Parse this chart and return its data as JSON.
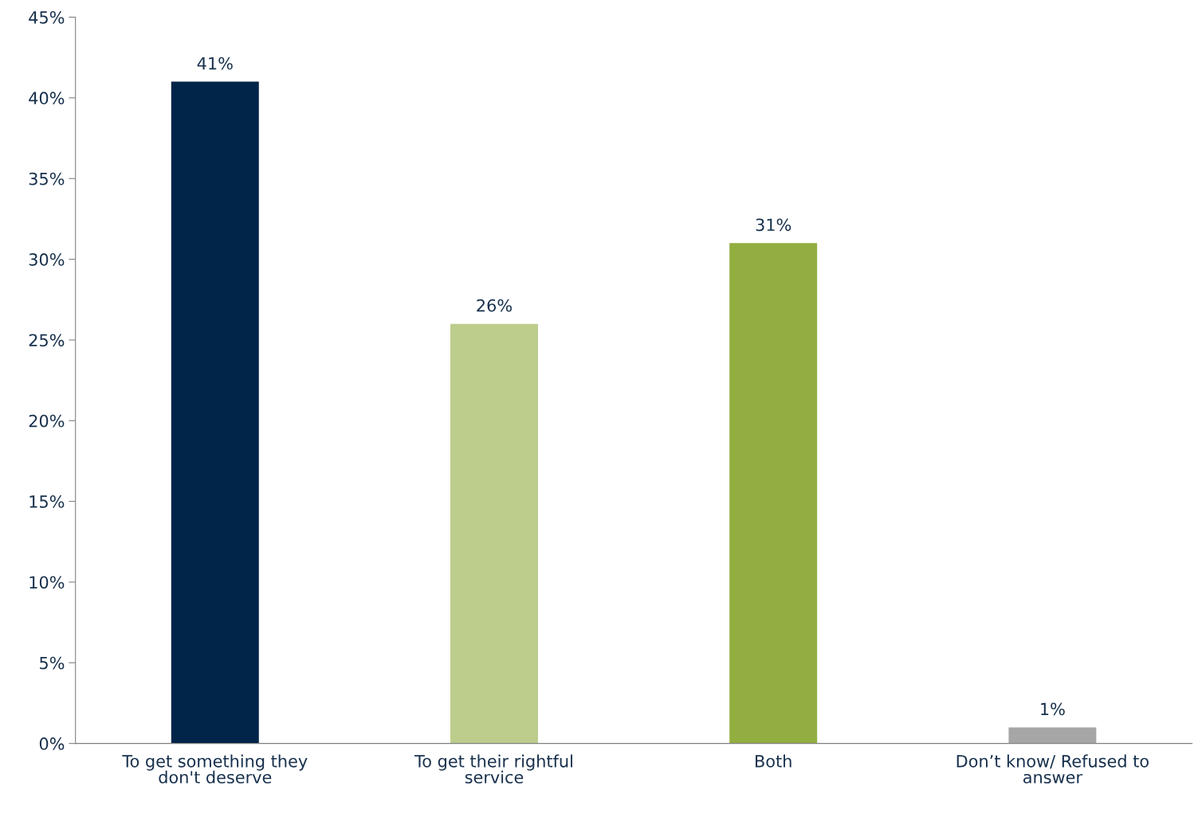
{
  "chart_data": {
    "type": "bar",
    "categories": [
      "To get something they\ndon't deserve",
      "To get their rightful\nservice",
      "Both",
      "Don’t know/ Refused to\nanswer"
    ],
    "values": [
      41,
      26,
      31,
      1
    ],
    "colors": [
      "#002549",
      "#bccd8c",
      "#92ae40",
      "#a6a6a6"
    ],
    "ylim": [
      0,
      45
    ],
    "yticks": [
      {
        "value": 0,
        "label": "0%"
      },
      {
        "value": 5,
        "label": "5%"
      },
      {
        "value": 10,
        "label": "10%"
      },
      {
        "value": 15,
        "label": "15%"
      },
      {
        "value": 20,
        "label": "20%"
      },
      {
        "value": 25,
        "label": "25%"
      },
      {
        "value": 30,
        "label": "30%"
      },
      {
        "value": 35,
        "label": "35%"
      },
      {
        "value": 40,
        "label": "40%"
      },
      {
        "value": 45,
        "label": "45%"
      }
    ],
    "value_labels": [
      "41%",
      "26%",
      "31%",
      "1%"
    ],
    "grid": false,
    "legend": false
  }
}
